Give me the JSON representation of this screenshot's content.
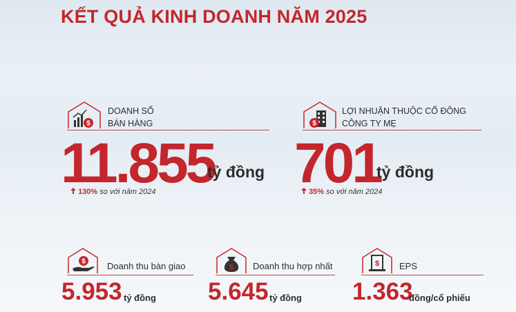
{
  "header": {
    "title": "KẾT QUẢ KINH DOANH NĂM 2025"
  },
  "highlights": [
    {
      "label_lines": [
        "DOANH SỐ",
        "BÁN HÀNG"
      ],
      "value": "11.855",
      "unit": "tỷ đồng",
      "change": "130%",
      "change_note": "so với năm 2024"
    },
    {
      "label_lines": [
        "LỢI NHUẬN THUỘC CỔ ĐÔNG",
        "CÔNG TY MẸ"
      ],
      "value": "701",
      "unit": "tỷ đồng",
      "change": "35%",
      "change_note": "so với năm 2024"
    }
  ],
  "metrics": [
    {
      "label": "Doanh thu bàn giao",
      "value": "5.953",
      "unit": "tỷ đồng"
    },
    {
      "label": "Doanh thu hợp nhất",
      "value": "5.645",
      "unit": "tỷ đồng"
    },
    {
      "label": "EPS",
      "value": "1.363",
      "unit": "đồng/cổ phiếu"
    }
  ]
}
